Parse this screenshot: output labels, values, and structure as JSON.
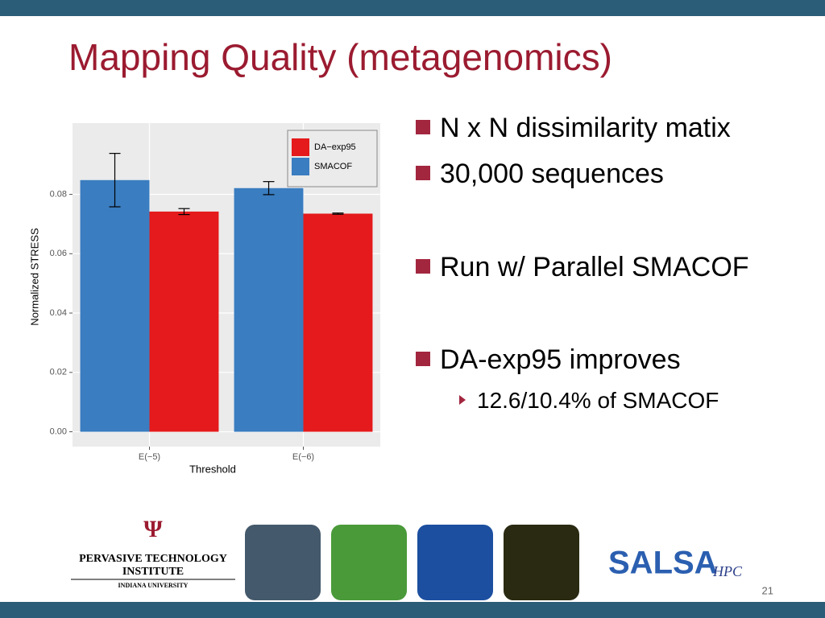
{
  "slide": {
    "title": "Mapping Quality (metagenomics)",
    "bullets": [
      "N x N dissimilarity matix",
      "30,000 sequences",
      "Run w/ Parallel SMACOF",
      "DA-exp95 improves"
    ],
    "sub_bullets": [
      "12.6/10.4% of SMACOF"
    ],
    "footer": {
      "institute": "PERVASIVE TECHNOLOGY",
      "institute_line2": "INSTITUTE",
      "university": "INDIANA UNIVERSITY",
      "salsa": "SALSA",
      "hpc": "HPC",
      "page_number": "21"
    }
  },
  "chart_data": {
    "type": "bar",
    "y_label": "Normalized STRESS",
    "x_label": "Threshold",
    "categories": [
      "E(−5)",
      "E(−6)"
    ],
    "series": [
      {
        "name": "SMACOF",
        "color": "#3a7dc0",
        "values": [
          0.0848,
          0.0821
        ],
        "errors": [
          0.009,
          0.0022
        ]
      },
      {
        "name": "DA−exp95",
        "color": "#e41a1c",
        "values": [
          0.0742,
          0.0735
        ],
        "errors": [
          0.001,
          0.0002
        ]
      }
    ],
    "legend_order": [
      1,
      0
    ],
    "legend": "upper right",
    "ylim": [
      -0.005,
      0.104
    ],
    "yticks": [
      {
        "value": 0,
        "label": "0.00"
      },
      {
        "value": 0.02,
        "label": "0.02"
      },
      {
        "value": 0.04,
        "label": "0.04"
      },
      {
        "value": 0.06,
        "label": "0.06"
      },
      {
        "value": 0.08,
        "label": "0.08"
      }
    ],
    "grid": true
  }
}
